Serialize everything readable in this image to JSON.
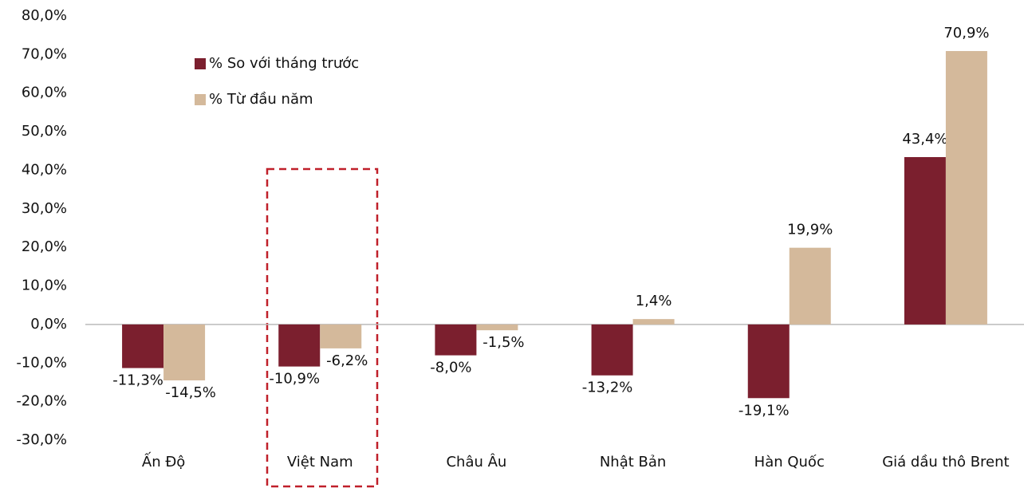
{
  "chart_data": {
    "type": "bar",
    "categories": [
      "Ấn Độ",
      "Việt Nam",
      "Châu Âu",
      "Nhật Bản",
      "Hàn Quốc",
      "Giá dầu thô Brent"
    ],
    "series": [
      {
        "name": "% So với tháng trước",
        "color": "#7b1f2e",
        "values": [
          -11.3,
          -10.9,
          -8.0,
          -13.2,
          -19.1,
          43.4
        ],
        "value_labels": [
          "-11,3%",
          "-10,9%",
          "-8,0%",
          "-13,2%",
          "-19,1%",
          "43,4%"
        ]
      },
      {
        "name": "% Từ đầu năm",
        "color": "#d4b99b",
        "values": [
          -14.5,
          -6.2,
          -1.5,
          1.4,
          19.9,
          70.9
        ],
        "value_labels": [
          "-14,5%",
          "-6,2%",
          "-1,5%",
          "1,4%",
          "19,9%",
          "70,9%"
        ]
      }
    ],
    "ylim": [
      -30,
      80
    ],
    "yticks": [
      {
        "value": -30,
        "label": "-30,0%"
      },
      {
        "value": -20,
        "label": "-20,0%"
      },
      {
        "value": -10,
        "label": "-10,0%"
      },
      {
        "value": 0,
        "label": "0,0%"
      },
      {
        "value": 10,
        "label": "10,0%"
      },
      {
        "value": 20,
        "label": "20,0%"
      },
      {
        "value": 30,
        "label": "30,0%"
      },
      {
        "value": 40,
        "label": "40,0%"
      },
      {
        "value": 50,
        "label": "50,0%"
      },
      {
        "value": 60,
        "label": "60,0%"
      },
      {
        "value": 70,
        "label": "70,0%"
      },
      {
        "value": 80,
        "label": "80,0%"
      }
    ],
    "legend": "top-left"
  }
}
